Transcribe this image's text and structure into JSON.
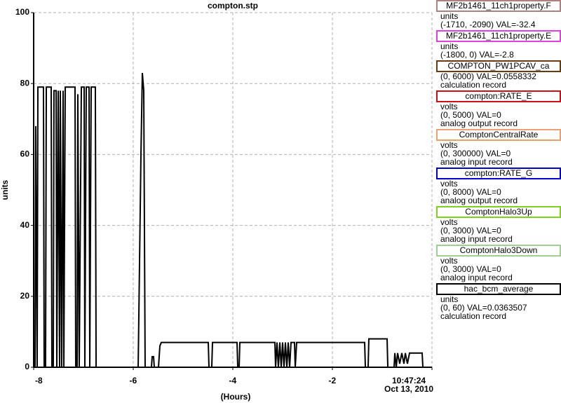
{
  "chart_data": {
    "type": "line",
    "title": "compton.stp",
    "xlabel": "(Hours)",
    "ylabel": "units",
    "ylabel_color": "#b08080",
    "xlim": [
      -8,
      0
    ],
    "ylim": [
      0,
      100
    ],
    "xticks": [
      -8,
      -6,
      -4,
      -2,
      {
        "value": 0,
        "label": "10:47:24\nOct 13, 2010"
      }
    ],
    "yticks": [
      0,
      20,
      40,
      60,
      80,
      100
    ],
    "grid": true,
    "x": [
      -8,
      -7.972,
      -7.958,
      -7.93,
      -7.915,
      -7.803,
      -7.789,
      -7.761,
      -7.746,
      -7.648,
      -7.634,
      -7.606,
      -7.592,
      -7.549,
      -7.535,
      -7.507,
      -7.479,
      -7.465,
      -7.437,
      -7.408,
      -7.394,
      -7.366,
      -7.169,
      -7.155,
      -7.127,
      -7.113,
      -7.085,
      -7.042,
      -6.986,
      -6.972,
      -6.944,
      -6.887,
      -6.873,
      -6.845,
      -6.761,
      -6.746,
      -5.901,
      -5.873,
      -5.845,
      -5.817,
      -5.789,
      -5.761,
      -5.634,
      -5.62,
      -5.592,
      -5.577,
      -5.493,
      -5.465,
      -5.437,
      -4.493,
      -4.479,
      -4.423,
      -4.408,
      -3.915,
      -3.901,
      -3.873,
      -3.859,
      -3.155,
      -3.141,
      -3.113,
      -3.085,
      -3.056,
      -3.028,
      -3.0,
      -2.972,
      -2.944,
      -2.915,
      -2.887,
      -2.859,
      -2.831,
      -2.761,
      -2.746,
      -2.718,
      -1.352,
      -1.338,
      -1.282,
      -1.268,
      -0.901,
      -0.887,
      -0.761,
      -0.746,
      -0.718,
      -0.69,
      -0.648,
      -0.606,
      -0.563,
      -0.535,
      -0.493,
      -0.451,
      -0.197,
      -0.183,
      0
    ],
    "series": [
      {
        "name": "hac_bcm_average",
        "color": "#000000",
        "values": [
          0,
          0,
          68,
          0,
          79,
          79,
          0,
          0,
          79,
          79,
          0,
          0,
          78,
          78,
          0,
          78,
          0,
          78,
          0,
          78,
          0,
          79,
          79,
          0,
          0,
          77,
          0,
          79,
          79,
          0,
          79,
          79,
          0,
          79,
          79,
          0,
          0,
          30,
          60,
          83,
          78,
          0,
          0,
          3,
          3,
          0,
          0,
          6,
          7,
          7,
          0,
          0,
          7,
          7,
          0,
          0,
          7,
          7,
          0,
          7,
          0,
          7,
          0,
          7,
          0,
          7,
          0,
          7,
          0,
          7,
          7,
          0,
          7,
          7,
          0,
          0,
          8,
          8,
          0,
          0,
          4,
          0,
          4,
          1,
          4,
          1,
          4,
          1,
          4,
          4,
          0,
          0
        ]
      }
    ]
  },
  "legend": [
    {
      "name": "MF2b1461_11ch1property.F",
      "color": "#b08080",
      "lines": [
        "units",
        "(-1710, -2090) VAL=-32.4"
      ]
    },
    {
      "name": "MF2b1461_11ch1property.E",
      "color": "#e040e0",
      "lines": [
        "units",
        "(-1800, 0) VAL=-2.8"
      ]
    },
    {
      "name": "COMPTON_PW1PCAV_ca",
      "color": "#6b3a10",
      "lines": [
        "(0, 6000) VAL=0.0558332",
        "calculation record"
      ]
    },
    {
      "name": "compton:RATE_E",
      "color": "#d01010",
      "lines": [
        "volts",
        "(0, 5000) VAL=0",
        "analog output record"
      ]
    },
    {
      "name": "ComptonCentralRate",
      "color": "#f0a070",
      "lines": [
        "volts",
        "(0, 300000) VAL=0",
        "analog input record"
      ]
    },
    {
      "name": "compton:RATE_G",
      "color": "#0000d0",
      "lines": [
        "volts",
        "(0, 8000) VAL=0",
        "analog output record"
      ]
    },
    {
      "name": "ComptonHalo3Up",
      "color": "#80d020",
      "lines": [
        "volts",
        "(0, 3000) VAL=0",
        "analog input record"
      ]
    },
    {
      "name": "ComptonHalo3Down",
      "color": "#a0d090",
      "lines": [
        "volts",
        "(0, 3000) VAL=0",
        "analog input record"
      ]
    },
    {
      "name": "hac_bcm_average",
      "color": "#000000",
      "lines": [
        "units",
        "(0, 60) VAL=0.0363507",
        "calculation record"
      ]
    }
  ]
}
